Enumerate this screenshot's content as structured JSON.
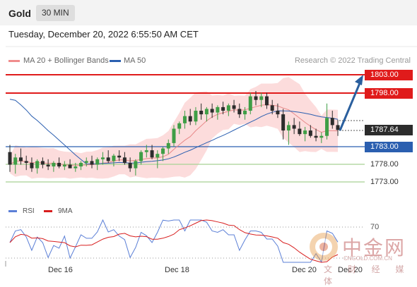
{
  "header": {
    "title": "Gold",
    "timeframe": "30 MIN"
  },
  "datetime": "Tuesday, December 20, 2022 6:55:50 AM CET",
  "legend": {
    "ma20_bollinger": "MA 20 + Bollinger Bands",
    "ma50": "MA 50",
    "credit": "Research © 2022 Trading Central"
  },
  "colors": {
    "resistance": "#e01b1b",
    "support": "#2b5fb0",
    "target": "#8dc27a",
    "candle_up": "#3f9e46",
    "candle_down": "#2c2c2c",
    "bollinger": "#f9c9c9",
    "ma20": "#e88a8a",
    "ma50": "#2b5fb0",
    "arrow": "#2a5f9e",
    "rsi": "#5b7fd6",
    "rsi_ma": "#d81e1e"
  },
  "levels": {
    "r2": "1803.00",
    "r1": "1798.00",
    "last": "1787.64",
    "s1": "1783.00",
    "s2": "1778.00",
    "s3": "1773.00"
  },
  "rsi": {
    "label": "RSI",
    "ma_label": "9MA",
    "level_label": "70"
  },
  "xaxis": [
    "Dec 16",
    "Dec 18",
    "Dec 20",
    "Dec 20"
  ],
  "watermark": {
    "name": "中金网",
    "url": "CNGOLD.COM.CN",
    "sub": "文 财 经 媒 体"
  },
  "chart_data": {
    "type": "candlestick",
    "title": "Gold",
    "timeframe": "30 MIN",
    "x_ticks": [
      "Dec 16",
      "Dec 18",
      "Dec 20",
      "Dec 20"
    ],
    "price_levels": [
      1803.0,
      1798.0,
      1787.64,
      1783.0,
      1778.0,
      1773.0
    ],
    "ohlc_approx": [
      [
        1781.5,
        1783.5,
        1776.0,
        1778.0
      ],
      [
        1778.0,
        1781.0,
        1775.5,
        1780.0
      ],
      [
        1780.0,
        1782.5,
        1778.0,
        1779.0
      ],
      [
        1779.0,
        1780.5,
        1776.5,
        1778.5
      ],
      [
        1778.5,
        1780.0,
        1776.0,
        1777.0
      ],
      [
        1777.0,
        1779.5,
        1775.5,
        1779.0
      ],
      [
        1779.0,
        1780.0,
        1777.0,
        1778.0
      ],
      [
        1778.0,
        1779.5,
        1776.5,
        1777.5
      ],
      [
        1777.5,
        1779.0,
        1776.0,
        1778.5
      ],
      [
        1778.5,
        1780.0,
        1777.0,
        1777.5
      ],
      [
        1777.5,
        1779.0,
        1776.5,
        1778.0
      ],
      [
        1778.0,
        1779.5,
        1777.0,
        1777.0
      ],
      [
        1777.0,
        1778.5,
        1776.0,
        1777.5
      ],
      [
        1777.5,
        1779.0,
        1776.5,
        1778.5
      ],
      [
        1778.5,
        1780.0,
        1777.5,
        1779.0
      ],
      [
        1779.0,
        1780.5,
        1777.0,
        1778.0
      ],
      [
        1778.0,
        1780.0,
        1776.5,
        1779.5
      ],
      [
        1779.5,
        1781.5,
        1778.0,
        1780.0
      ],
      [
        1780.0,
        1782.0,
        1778.5,
        1779.0
      ],
      [
        1779.0,
        1781.0,
        1777.5,
        1780.5
      ],
      [
        1780.5,
        1782.0,
        1779.0,
        1780.0
      ],
      [
        1780.0,
        1781.5,
        1778.0,
        1778.5
      ],
      [
        1778.5,
        1780.0,
        1776.0,
        1777.0
      ],
      [
        1777.0,
        1779.5,
        1775.0,
        1779.0
      ],
      [
        1779.0,
        1782.0,
        1778.0,
        1781.5
      ],
      [
        1781.5,
        1783.5,
        1780.0,
        1782.0
      ],
      [
        1782.0,
        1783.5,
        1779.5,
        1780.0
      ],
      [
        1780.0,
        1782.0,
        1777.0,
        1781.0
      ],
      [
        1781.0,
        1783.0,
        1779.0,
        1782.5
      ],
      [
        1782.5,
        1785.0,
        1781.0,
        1784.0
      ],
      [
        1784.0,
        1789.0,
        1783.0,
        1788.0
      ],
      [
        1788.0,
        1790.0,
        1786.5,
        1789.5
      ],
      [
        1789.5,
        1793.0,
        1788.0,
        1791.5
      ],
      [
        1791.5,
        1793.5,
        1789.0,
        1790.0
      ],
      [
        1790.0,
        1794.0,
        1789.0,
        1793.0
      ],
      [
        1793.0,
        1795.0,
        1790.5,
        1792.0
      ],
      [
        1792.0,
        1794.0,
        1790.0,
        1793.5
      ],
      [
        1793.5,
        1795.0,
        1791.0,
        1792.5
      ],
      [
        1792.5,
        1794.5,
        1790.5,
        1794.0
      ],
      [
        1794.0,
        1795.5,
        1792.0,
        1793.0
      ],
      [
        1793.0,
        1795.0,
        1791.5,
        1794.5
      ],
      [
        1794.5,
        1796.0,
        1792.5,
        1793.5
      ],
      [
        1793.5,
        1795.0,
        1791.0,
        1792.0
      ],
      [
        1792.0,
        1794.0,
        1790.5,
        1793.0
      ],
      [
        1793.0,
        1798.0,
        1792.0,
        1797.0
      ],
      [
        1797.0,
        1798.5,
        1794.5,
        1796.0
      ],
      [
        1796.0,
        1798.0,
        1794.0,
        1797.0
      ],
      [
        1797.0,
        1798.0,
        1793.5,
        1794.5
      ],
      [
        1794.5,
        1796.0,
        1792.0,
        1793.0
      ],
      [
        1793.0,
        1795.0,
        1791.0,
        1792.0
      ],
      [
        1792.0,
        1793.5,
        1785.0,
        1787.5
      ],
      [
        1787.5,
        1790.0,
        1783.5,
        1789.0
      ],
      [
        1789.0,
        1791.0,
        1786.5,
        1788.0
      ],
      [
        1788.0,
        1790.0,
        1786.0,
        1786.5
      ],
      [
        1786.5,
        1788.5,
        1784.5,
        1787.5
      ],
      [
        1787.5,
        1789.0,
        1785.5,
        1786.0
      ],
      [
        1786.0,
        1788.0,
        1784.5,
        1785.5
      ],
      [
        1785.5,
        1787.0,
        1784.0,
        1786.0
      ],
      [
        1786.0,
        1795.0,
        1785.0,
        1791.0
      ],
      [
        1791.0,
        1793.0,
        1788.0,
        1789.0
      ],
      [
        1789.0,
        1790.5,
        1786.0,
        1787.64
      ]
    ]
  }
}
